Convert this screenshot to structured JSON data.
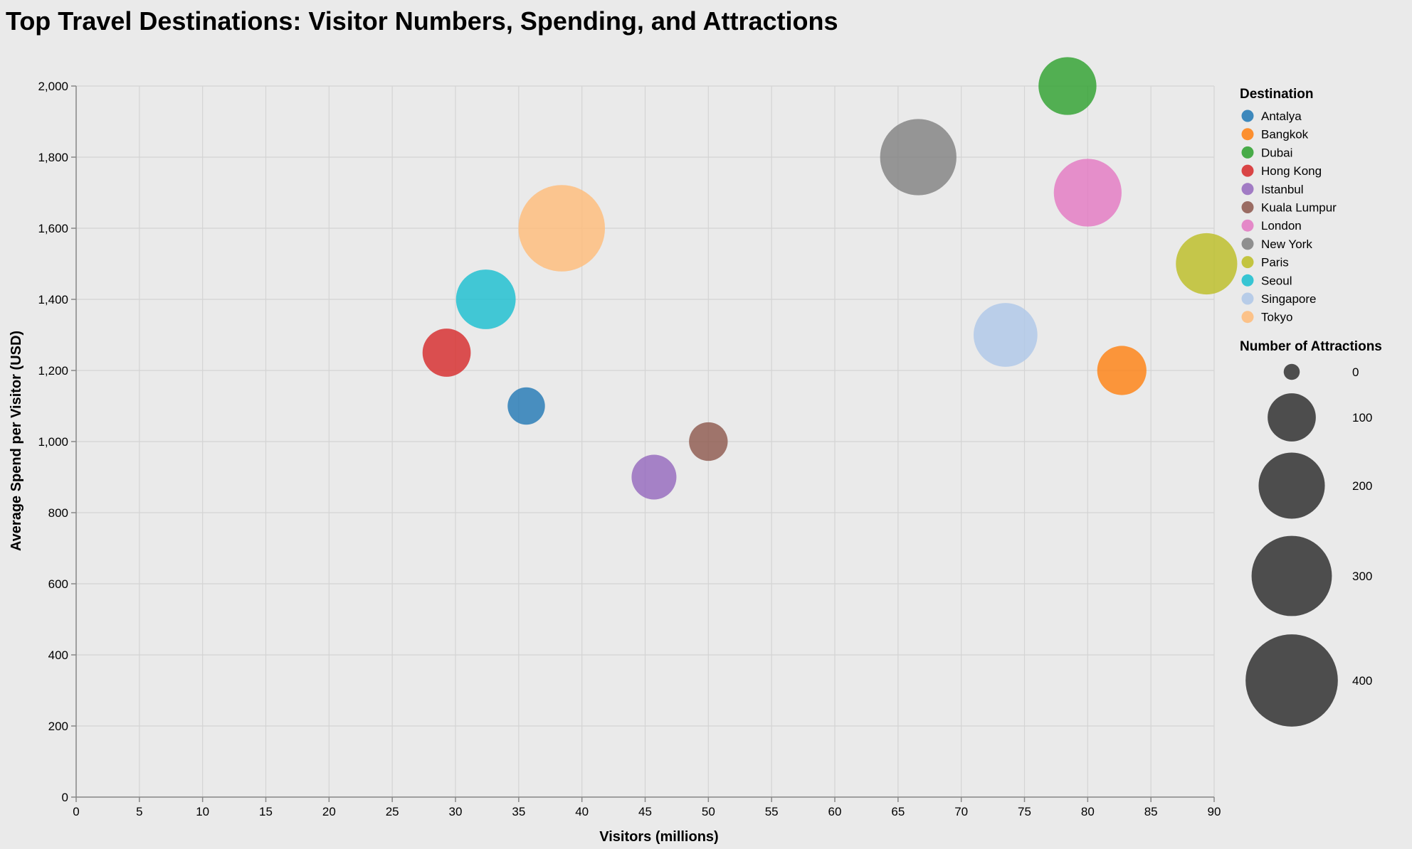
{
  "chart_data": {
    "type": "scatter",
    "title": "Top Travel Destinations: Visitor Numbers, Spending, and Attractions",
    "xlabel": "Visitors (millions)",
    "ylabel": "Average Spend per Visitor (USD)",
    "xlim": [
      0,
      90
    ],
    "ylim": [
      0,
      2000
    ],
    "x_ticks": [
      0,
      5,
      10,
      15,
      20,
      25,
      30,
      35,
      40,
      45,
      50,
      55,
      60,
      65,
      70,
      75,
      80,
      85,
      90
    ],
    "y_ticks": [
      0,
      200,
      400,
      600,
      800,
      1000,
      1200,
      1400,
      1600,
      1800,
      2000
    ],
    "x_tick_labels": [
      "0",
      "5",
      "10",
      "15",
      "20",
      "25",
      "30",
      "35",
      "40",
      "45",
      "50",
      "55",
      "60",
      "65",
      "70",
      "75",
      "80",
      "85",
      "90"
    ],
    "y_tick_labels": [
      "0",
      "200",
      "400",
      "600",
      "800",
      "1,000",
      "1,200",
      "1,400",
      "1,600",
      "1,800",
      "2,000"
    ],
    "grid": true,
    "color_legend": {
      "title": "Destination",
      "placement": "right",
      "entries": [
        {
          "name": "Antalya",
          "color": "#1f77b4"
        },
        {
          "name": "Bangkok",
          "color": "#ff7f0e"
        },
        {
          "name": "Dubai",
          "color": "#2ca02c"
        },
        {
          "name": "Hong Kong",
          "color": "#d62728"
        },
        {
          "name": "Istanbul",
          "color": "#9467bd"
        },
        {
          "name": "Kuala Lumpur",
          "color": "#8c564b"
        },
        {
          "name": "London",
          "color": "#e377c2"
        },
        {
          "name": "New York",
          "color": "#7f7f7f"
        },
        {
          "name": "Paris",
          "color": "#bcbd22"
        },
        {
          "name": "Seoul",
          "color": "#17becf"
        },
        {
          "name": "Singapore",
          "color": "#aec7e8"
        },
        {
          "name": "Tokyo",
          "color": "#ffbb78"
        }
      ]
    },
    "size_legend": {
      "title": "Number of Attractions",
      "values": [
        0,
        100,
        200,
        300,
        400
      ],
      "labels": [
        "0",
        "100",
        "200",
        "300",
        "400"
      ]
    },
    "points": [
      {
        "destination": "Paris",
        "x": 89.4,
        "y": 1500,
        "attractions": 170
      },
      {
        "destination": "Bangkok",
        "x": 82.7,
        "y": 1200,
        "attractions": 105
      },
      {
        "destination": "London",
        "x": 80.0,
        "y": 1700,
        "attractions": 210
      },
      {
        "destination": "Dubai",
        "x": 78.4,
        "y": 2000,
        "attractions": 150
      },
      {
        "destination": "Singapore",
        "x": 73.5,
        "y": 1300,
        "attractions": 185
      },
      {
        "destination": "New York",
        "x": 66.6,
        "y": 1800,
        "attractions": 270
      },
      {
        "destination": "Kuala Lumpur",
        "x": 50.0,
        "y": 1000,
        "attractions": 60
      },
      {
        "destination": "Istanbul",
        "x": 45.7,
        "y": 900,
        "attractions": 85
      },
      {
        "destination": "Tokyo",
        "x": 38.4,
        "y": 1600,
        "attractions": 350
      },
      {
        "destination": "Antalya",
        "x": 35.6,
        "y": 1100,
        "attractions": 55
      },
      {
        "destination": "Seoul",
        "x": 32.4,
        "y": 1400,
        "attractions": 160
      },
      {
        "destination": "Hong Kong",
        "x": 29.3,
        "y": 1250,
        "attractions": 100
      }
    ]
  }
}
